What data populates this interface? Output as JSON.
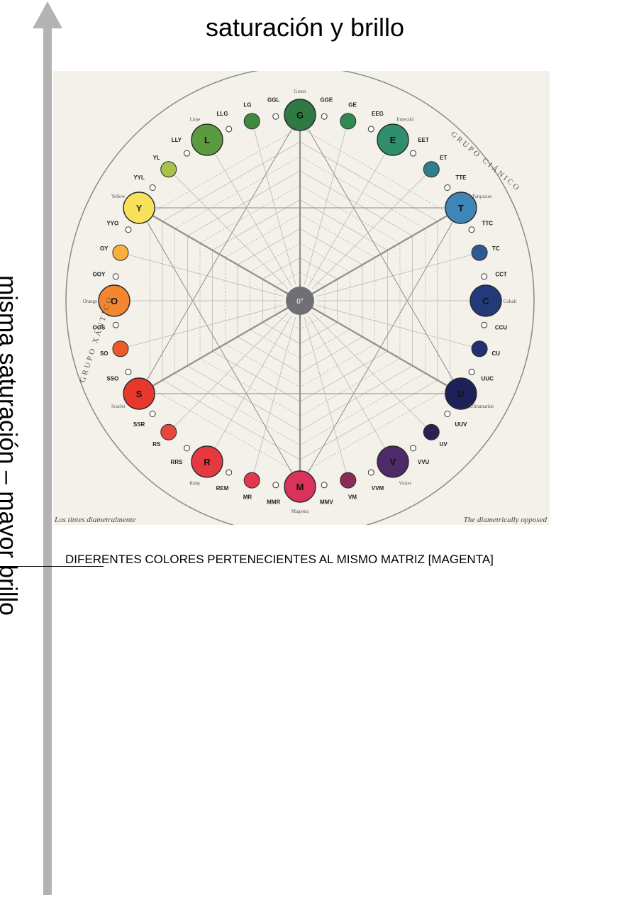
{
  "header": {
    "title": "saturación y brillo"
  },
  "axis": {
    "label": "misma saturación – mayor brillo",
    "color": "#b3b3b3"
  },
  "caption": {
    "text": "DIFERENTES COLORES PERTENECIENTES AL MISMO MATRIZ [MAGENTA]"
  },
  "diagram": {
    "background": "#f4f1ea",
    "center_label": "0°",
    "ring_labels": [
      {
        "text": "GRUPO XÁNTICO",
        "side": "left"
      },
      {
        "text": "GRUPO CIÁNICO",
        "side": "right"
      }
    ],
    "corner_notes": {
      "left": "Los tintes diametralmente",
      "right": "The diametrically opposed"
    },
    "group_names": {
      "green": "Green",
      "emerald": "Emerald",
      "turquoise": "Turquoise",
      "cobalt": "Cobalt",
      "ultramarine": "Ultramarine",
      "violet": "Violet",
      "magenta": "Magenta",
      "ruby": "Ruby",
      "scarlet": "Scarlet",
      "orange": "Orange",
      "yellow": "Yellow",
      "lime": "Lime"
    },
    "hues": [
      {
        "code": "G",
        "color": "#2f7a42"
      },
      {
        "code": "GGE",
        "color": "#ffffff"
      },
      {
        "code": "GE",
        "color": "#2f8a52"
      },
      {
        "code": "EEG",
        "color": "#ffffff"
      },
      {
        "code": "E",
        "color": "#2f8f6c"
      },
      {
        "code": "EET",
        "color": "#ffffff"
      },
      {
        "code": "ET",
        "color": "#2f7f8f"
      },
      {
        "code": "TTE",
        "color": "#ffffff"
      },
      {
        "code": "T",
        "color": "#3f86b8"
      },
      {
        "code": "TTC",
        "color": "#ffffff"
      },
      {
        "code": "TC",
        "color": "#2f5a8f"
      },
      {
        "code": "CCT",
        "color": "#ffffff"
      },
      {
        "code": "C",
        "color": "#223a7a"
      },
      {
        "code": "CCU",
        "color": "#ffffff"
      },
      {
        "code": "CU",
        "color": "#23306f"
      },
      {
        "code": "UUC",
        "color": "#ffffff"
      },
      {
        "code": "U",
        "color": "#1c2257"
      },
      {
        "code": "UUV",
        "color": "#ffffff"
      },
      {
        "code": "UV",
        "color": "#262353"
      },
      {
        "code": "VVU",
        "color": "#ffffff"
      },
      {
        "code": "V",
        "color": "#4c2b68"
      },
      {
        "code": "VVM",
        "color": "#ffffff"
      },
      {
        "code": "VM",
        "color": "#8d2a57"
      },
      {
        "code": "MMV",
        "color": "#ffffff"
      },
      {
        "code": "M",
        "color": "#d9325b"
      },
      {
        "code": "MMR",
        "color": "#ffffff"
      },
      {
        "code": "MR",
        "color": "#e3374e"
      },
      {
        "code": "REM",
        "color": "#ffffff"
      },
      {
        "code": "R",
        "color": "#e43a3f"
      },
      {
        "code": "RRS",
        "color": "#ffffff"
      },
      {
        "code": "RS",
        "color": "#e8473b"
      },
      {
        "code": "SSR",
        "color": "#ffffff"
      },
      {
        "code": "S",
        "color": "#e8382c"
      },
      {
        "code": "SSO",
        "color": "#ffffff"
      },
      {
        "code": "SO",
        "color": "#ee5a2c"
      },
      {
        "code": "OOS",
        "color": "#ffffff"
      },
      {
        "code": "O",
        "color": "#f5862f"
      },
      {
        "code": "OOY",
        "color": "#ffffff"
      },
      {
        "code": "OY",
        "color": "#f7b03d"
      },
      {
        "code": "YYO",
        "color": "#ffffff"
      },
      {
        "code": "Y",
        "color": "#f8e25a"
      },
      {
        "code": "YYL",
        "color": "#ffffff"
      },
      {
        "code": "YL",
        "color": "#a8c24a"
      },
      {
        "code": "LLY",
        "color": "#ffffff"
      },
      {
        "code": "L",
        "color": "#5c9a3f"
      },
      {
        "code": "LLG",
        "color": "#ffffff"
      },
      {
        "code": "LG",
        "color": "#3f8a3f"
      },
      {
        "code": "GGL",
        "color": "#ffffff"
      }
    ]
  }
}
